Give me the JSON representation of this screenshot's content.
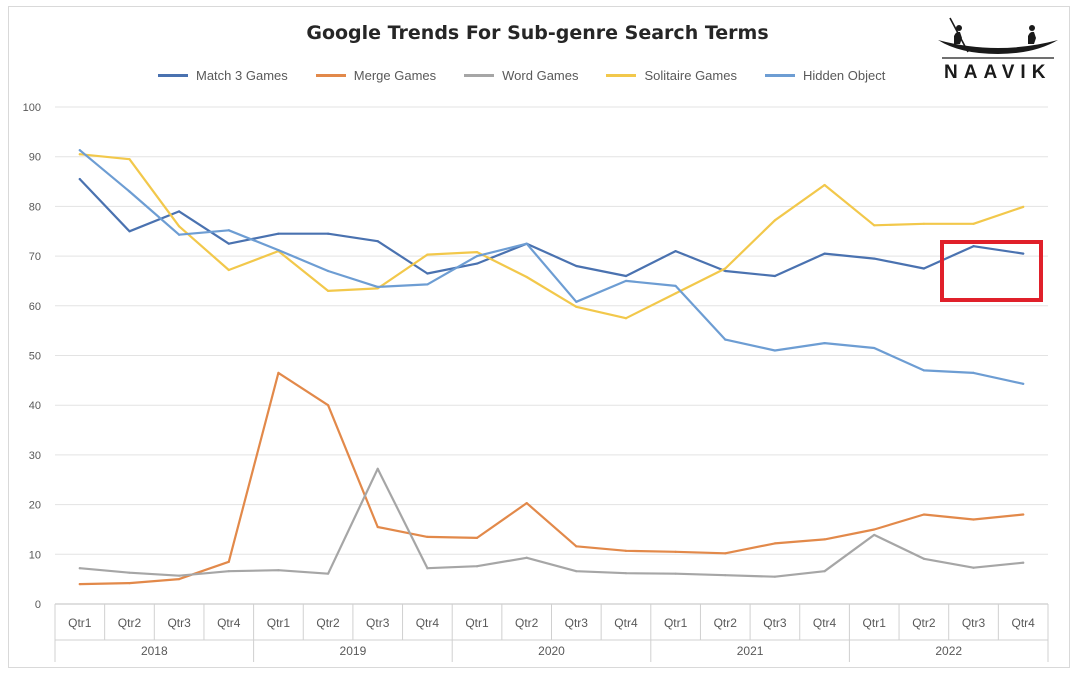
{
  "chart_data": {
    "type": "line",
    "title": "Google Trends For Sub-genre Search Terms",
    "xlabel": "",
    "ylabel": "",
    "ylim": [
      0,
      100
    ],
    "yticks": [
      0,
      10,
      20,
      30,
      40,
      50,
      60,
      70,
      80,
      90,
      100
    ],
    "grid": true,
    "legend_position": "top",
    "categories": [
      "Qtr1",
      "Qtr2",
      "Qtr3",
      "Qtr4",
      "Qtr1",
      "Qtr2",
      "Qtr3",
      "Qtr4",
      "Qtr1",
      "Qtr2",
      "Qtr3",
      "Qtr4",
      "Qtr1",
      "Qtr2",
      "Qtr3",
      "Qtr4",
      "Qtr1",
      "Qtr2",
      "Qtr3",
      "Qtr4"
    ],
    "groups": [
      "2018",
      "2019",
      "2020",
      "2021",
      "2022"
    ],
    "series": [
      {
        "name": "Match 3 Games",
        "color": "#4a72b0",
        "values": [
          85.5,
          75,
          79,
          72.5,
          74.5,
          74.5,
          73,
          66.5,
          68.5,
          72.5,
          68,
          66,
          71,
          67,
          66,
          70.5,
          69.5,
          67.5,
          72,
          70.5
        ]
      },
      {
        "name": "Merge Games",
        "color": "#e2894a",
        "values": [
          4,
          4.2,
          5,
          8.5,
          46.5,
          40,
          15.5,
          13.5,
          13.3,
          20.3,
          11.6,
          10.7,
          10.5,
          10.2,
          12.2,
          13,
          15,
          18,
          17,
          18
        ]
      },
      {
        "name": "Word Games",
        "color": "#a6a6a6",
        "values": [
          7.2,
          6.3,
          5.7,
          6.6,
          6.8,
          6.1,
          27.2,
          7.2,
          7.6,
          9.3,
          6.6,
          6.2,
          6.1,
          5.8,
          5.5,
          6.6,
          13.9,
          9.1,
          7.3,
          8.3
        ]
      },
      {
        "name": "Solitaire Games",
        "color": "#f2c84b",
        "values": [
          90.5,
          89.5,
          76,
          67.2,
          71,
          63,
          63.5,
          70.3,
          70.8,
          65.8,
          59.8,
          57.5,
          62.5,
          67.5,
          77.2,
          84.3,
          76.2,
          76.5,
          76.5,
          79.9
        ]
      },
      {
        "name": "Hidden Object",
        "color": "#6d9dd3",
        "values": [
          91.3,
          83,
          74.3,
          75.2,
          71.2,
          67,
          63.8,
          64.3,
          70,
          72.5,
          60.8,
          65,
          64,
          53.2,
          51,
          52.5,
          51.5,
          47,
          46.5,
          44.3
        ]
      }
    ]
  },
  "logo": {
    "text": "NAAVIK"
  }
}
